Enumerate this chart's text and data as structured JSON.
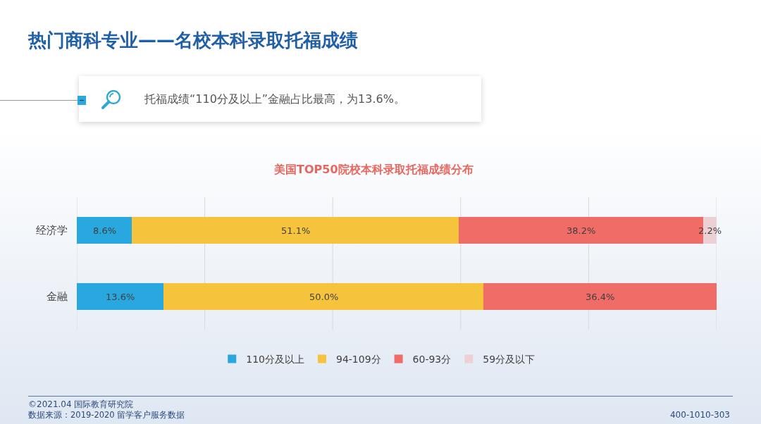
{
  "chart_data": {
    "type": "bar",
    "orientation": "horizontal",
    "stacked": true,
    "title": "热门商科专业——名校本科录取托福成绩",
    "subtitle": "美国TOP50院校本科录取托福成绩分布",
    "categories": [
      "经济学",
      "金融"
    ],
    "series": [
      {
        "name": "110分及以上",
        "color": "#29a8e0",
        "values": [
          8.6,
          13.6
        ],
        "value_labels": [
          "8.6%",
          "13.6%"
        ]
      },
      {
        "name": "94-109分",
        "color": "#f5c43c",
        "values": [
          51.1,
          50.0
        ],
        "value_labels": [
          "51.1%",
          "50.0%"
        ]
      },
      {
        "name": "60-93分",
        "color": "#f06c66",
        "values": [
          38.2,
          36.4
        ],
        "value_labels": [
          "38.2%",
          "36.4%"
        ]
      },
      {
        "name": "59分及以下",
        "color": "#ecd0d6",
        "values": [
          2.2,
          null
        ],
        "value_labels": [
          "2.2%",
          null
        ]
      }
    ],
    "xlim": [
      0,
      100
    ],
    "xticks": [
      {
        "value": 0,
        "label": null
      },
      {
        "value": 20,
        "label": null
      },
      {
        "value": 40,
        "label": null
      },
      {
        "value": 60,
        "label": null
      },
      {
        "value": 80,
        "label": null
      },
      {
        "value": 100,
        "label": null
      }
    ],
    "grid": "x",
    "legend": "bottom",
    "tick_labels": "y",
    "annotations": [
      "托福成绩“110分及以上”金融占比最高，为13.6%。",
      "©2021.04 国际教育研究院",
      "数据来源：2019-2020 留学客户服务数据",
      "400-1010-303"
    ]
  }
}
